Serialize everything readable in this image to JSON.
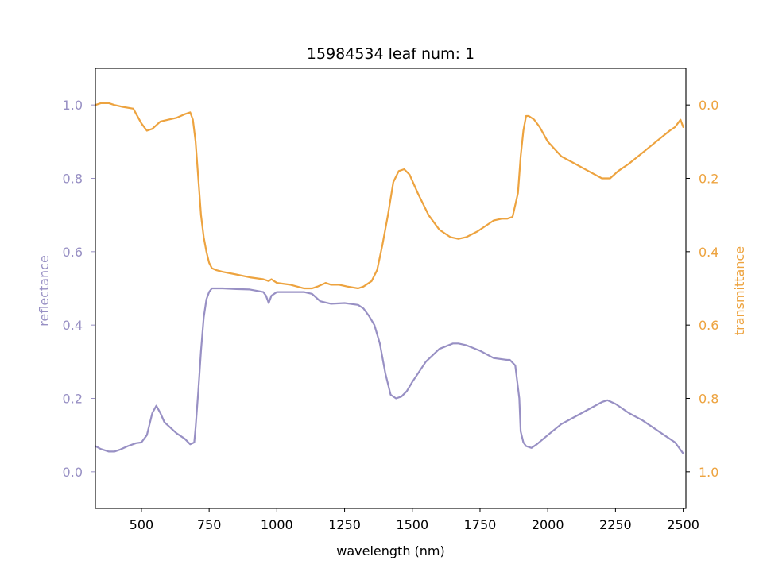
{
  "chart_data": {
    "type": "line",
    "title": "15984534 leaf num: 1",
    "xlabel": "wavelength (nm)",
    "ylabel_left": "reflectance",
    "ylabel_right": "transmittance",
    "xlim": [
      330,
      2510
    ],
    "ylim_left": [
      -0.1,
      1.1
    ],
    "ylim_right": [
      1.1,
      -0.1
    ],
    "right_axis_inverted": true,
    "x_ticks": [
      500,
      750,
      1000,
      1250,
      1500,
      1750,
      2000,
      2250,
      2500
    ],
    "y_ticks_left": [
      "0.0",
      "0.2",
      "0.4",
      "0.6",
      "0.8",
      "1.0"
    ],
    "y_ticks_right": [
      "0.0",
      "0.2",
      "0.4",
      "0.6",
      "0.8",
      "1.0"
    ],
    "grid": false,
    "legend": "none",
    "colors": {
      "reflectance": "#9890c4",
      "transmittance": "#eda33f",
      "axes": "#000000"
    },
    "series": [
      {
        "name": "reflectance",
        "axis": "left",
        "x": [
          330,
          350,
          380,
          400,
          420,
          450,
          480,
          500,
          520,
          540,
          555,
          570,
          585,
          600,
          630,
          660,
          680,
          695,
          700,
          710,
          720,
          730,
          740,
          750,
          760,
          775,
          800,
          850,
          900,
          950,
          960,
          970,
          980,
          1000,
          1050,
          1100,
          1130,
          1160,
          1200,
          1250,
          1300,
          1320,
          1340,
          1360,
          1380,
          1400,
          1420,
          1440,
          1460,
          1480,
          1500,
          1550,
          1600,
          1650,
          1670,
          1700,
          1750,
          1800,
          1850,
          1860,
          1880,
          1895,
          1900,
          1910,
          1920,
          1940,
          1960,
          2000,
          2050,
          2100,
          2150,
          2200,
          2220,
          2250,
          2300,
          2350,
          2400,
          2430,
          2450,
          2470,
          2480,
          2490,
          2500
        ],
        "y": [
          0.07,
          0.062,
          0.055,
          0.055,
          0.06,
          0.07,
          0.078,
          0.08,
          0.1,
          0.16,
          0.18,
          0.16,
          0.135,
          0.125,
          0.105,
          0.09,
          0.075,
          0.08,
          0.12,
          0.22,
          0.33,
          0.42,
          0.47,
          0.49,
          0.5,
          0.5,
          0.5,
          0.498,
          0.497,
          0.49,
          0.48,
          0.46,
          0.48,
          0.49,
          0.49,
          0.49,
          0.485,
          0.465,
          0.458,
          0.46,
          0.455,
          0.445,
          0.425,
          0.4,
          0.35,
          0.27,
          0.21,
          0.2,
          0.205,
          0.22,
          0.245,
          0.3,
          0.335,
          0.35,
          0.35,
          0.345,
          0.33,
          0.31,
          0.305,
          0.305,
          0.29,
          0.2,
          0.11,
          0.08,
          0.07,
          0.065,
          0.075,
          0.1,
          0.13,
          0.15,
          0.17,
          0.19,
          0.195,
          0.185,
          0.16,
          0.14,
          0.115,
          0.1,
          0.09,
          0.08,
          0.07,
          0.06,
          0.05
        ]
      },
      {
        "name": "transmittance",
        "axis": "right",
        "x": [
          330,
          350,
          380,
          400,
          430,
          470,
          500,
          520,
          540,
          555,
          570,
          600,
          630,
          660,
          680,
          690,
          700,
          710,
          720,
          730,
          740,
          750,
          760,
          775,
          800,
          850,
          900,
          950,
          970,
          980,
          990,
          1000,
          1050,
          1100,
          1130,
          1150,
          1180,
          1200,
          1230,
          1260,
          1300,
          1320,
          1350,
          1370,
          1390,
          1410,
          1430,
          1450,
          1470,
          1490,
          1520,
          1560,
          1600,
          1640,
          1670,
          1700,
          1740,
          1770,
          1800,
          1830,
          1850,
          1870,
          1890,
          1900,
          1910,
          1920,
          1930,
          1950,
          1970,
          2000,
          2050,
          2100,
          2150,
          2200,
          2230,
          2260,
          2300,
          2350,
          2400,
          2450,
          2470,
          2490,
          2500
        ],
        "y": [
          0.0,
          -0.005,
          -0.005,
          0.0,
          0.005,
          0.01,
          0.05,
          0.07,
          0.065,
          0.055,
          0.045,
          0.04,
          0.035,
          0.025,
          0.02,
          0.04,
          0.1,
          0.2,
          0.3,
          0.36,
          0.4,
          0.43,
          0.445,
          0.45,
          0.455,
          0.462,
          0.47,
          0.475,
          0.48,
          0.475,
          0.48,
          0.485,
          0.49,
          0.5,
          0.5,
          0.495,
          0.485,
          0.49,
          0.49,
          0.495,
          0.5,
          0.495,
          0.48,
          0.45,
          0.38,
          0.3,
          0.21,
          0.18,
          0.175,
          0.19,
          0.24,
          0.3,
          0.34,
          0.36,
          0.365,
          0.36,
          0.345,
          0.33,
          0.315,
          0.31,
          0.31,
          0.305,
          0.24,
          0.14,
          0.07,
          0.03,
          0.03,
          0.04,
          0.06,
          0.1,
          0.14,
          0.16,
          0.18,
          0.2,
          0.2,
          0.18,
          0.16,
          0.13,
          0.1,
          0.07,
          0.06,
          0.04,
          0.06
        ]
      }
    ]
  }
}
